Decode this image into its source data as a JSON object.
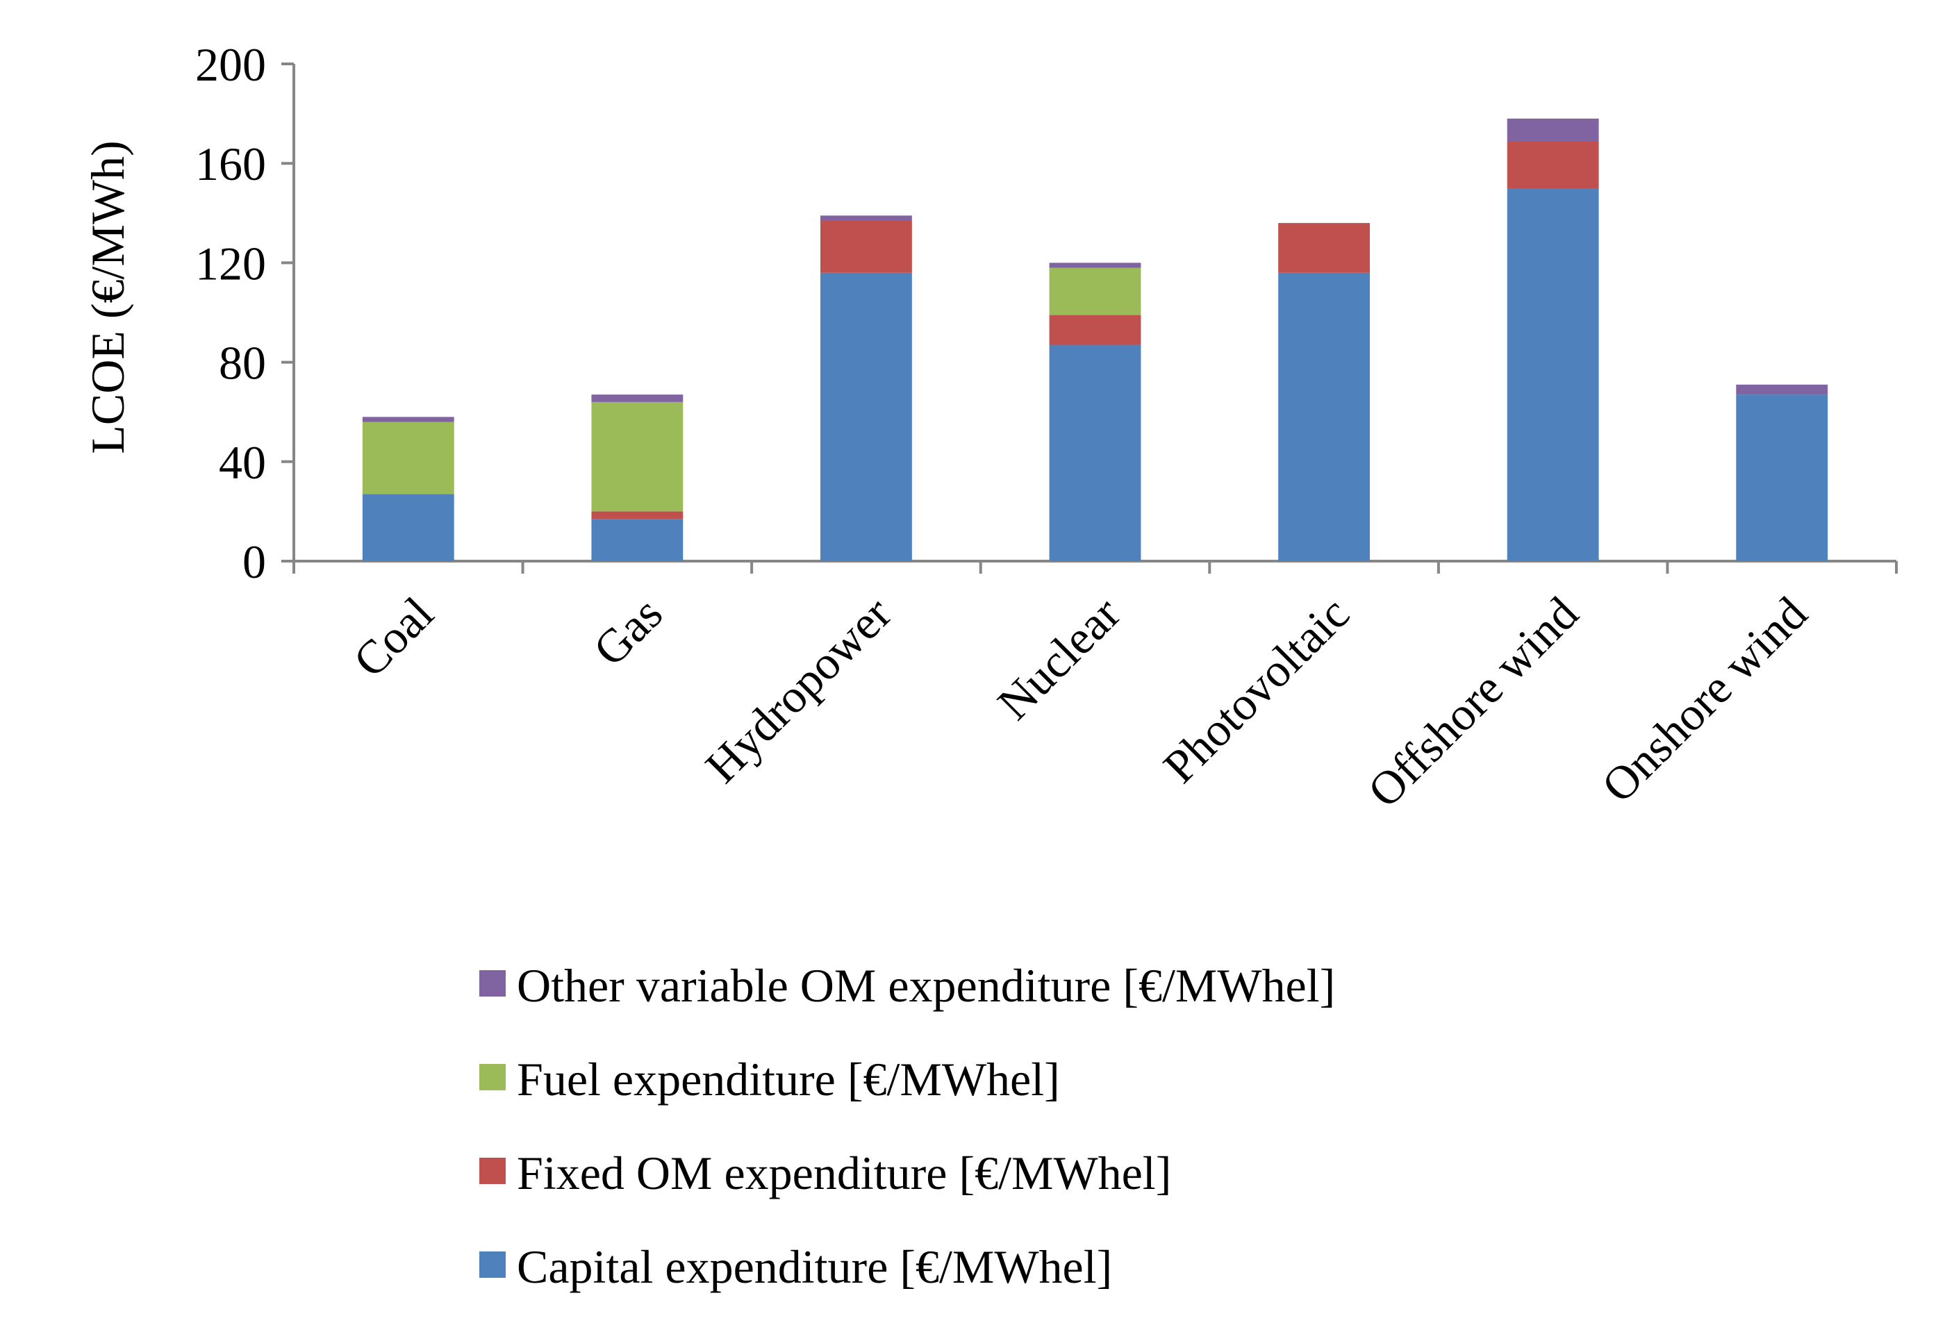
{
  "chart_data": {
    "type": "bar",
    "stacked": true,
    "title": "",
    "xlabel": "",
    "ylabel": "LCOE (€/MWh)",
    "ylim": [
      0,
      200
    ],
    "yticks": [
      0,
      40,
      80,
      120,
      160,
      200
    ],
    "grid": false,
    "legend_position": "bottom",
    "categories": [
      "Coal",
      "Gas",
      "Hydropower",
      "Nuclear",
      "Photovoltaic",
      "Offshore wind",
      "Onshore wind"
    ],
    "series": [
      {
        "name": "Capital expenditure [€/MWhel]",
        "color": "#4F81BD",
        "values": [
          27,
          17,
          116,
          87,
          116,
          150,
          67
        ]
      },
      {
        "name": "Fixed OM expenditure [€/MWhel]",
        "color": "#C0504D",
        "values": [
          0,
          3,
          21,
          12,
          20,
          19,
          0
        ]
      },
      {
        "name": "Fuel expenditure [€/MWhel]",
        "color": "#9BBB59",
        "values": [
          29,
          44,
          0,
          19,
          0,
          0,
          0
        ]
      },
      {
        "name": "Other variable OM expenditure [€/MWhel]",
        "color": "#8064A2",
        "values": [
          2,
          3,
          2,
          2,
          0,
          9,
          4
        ]
      }
    ],
    "legend_order": [
      3,
      2,
      1,
      0
    ]
  }
}
